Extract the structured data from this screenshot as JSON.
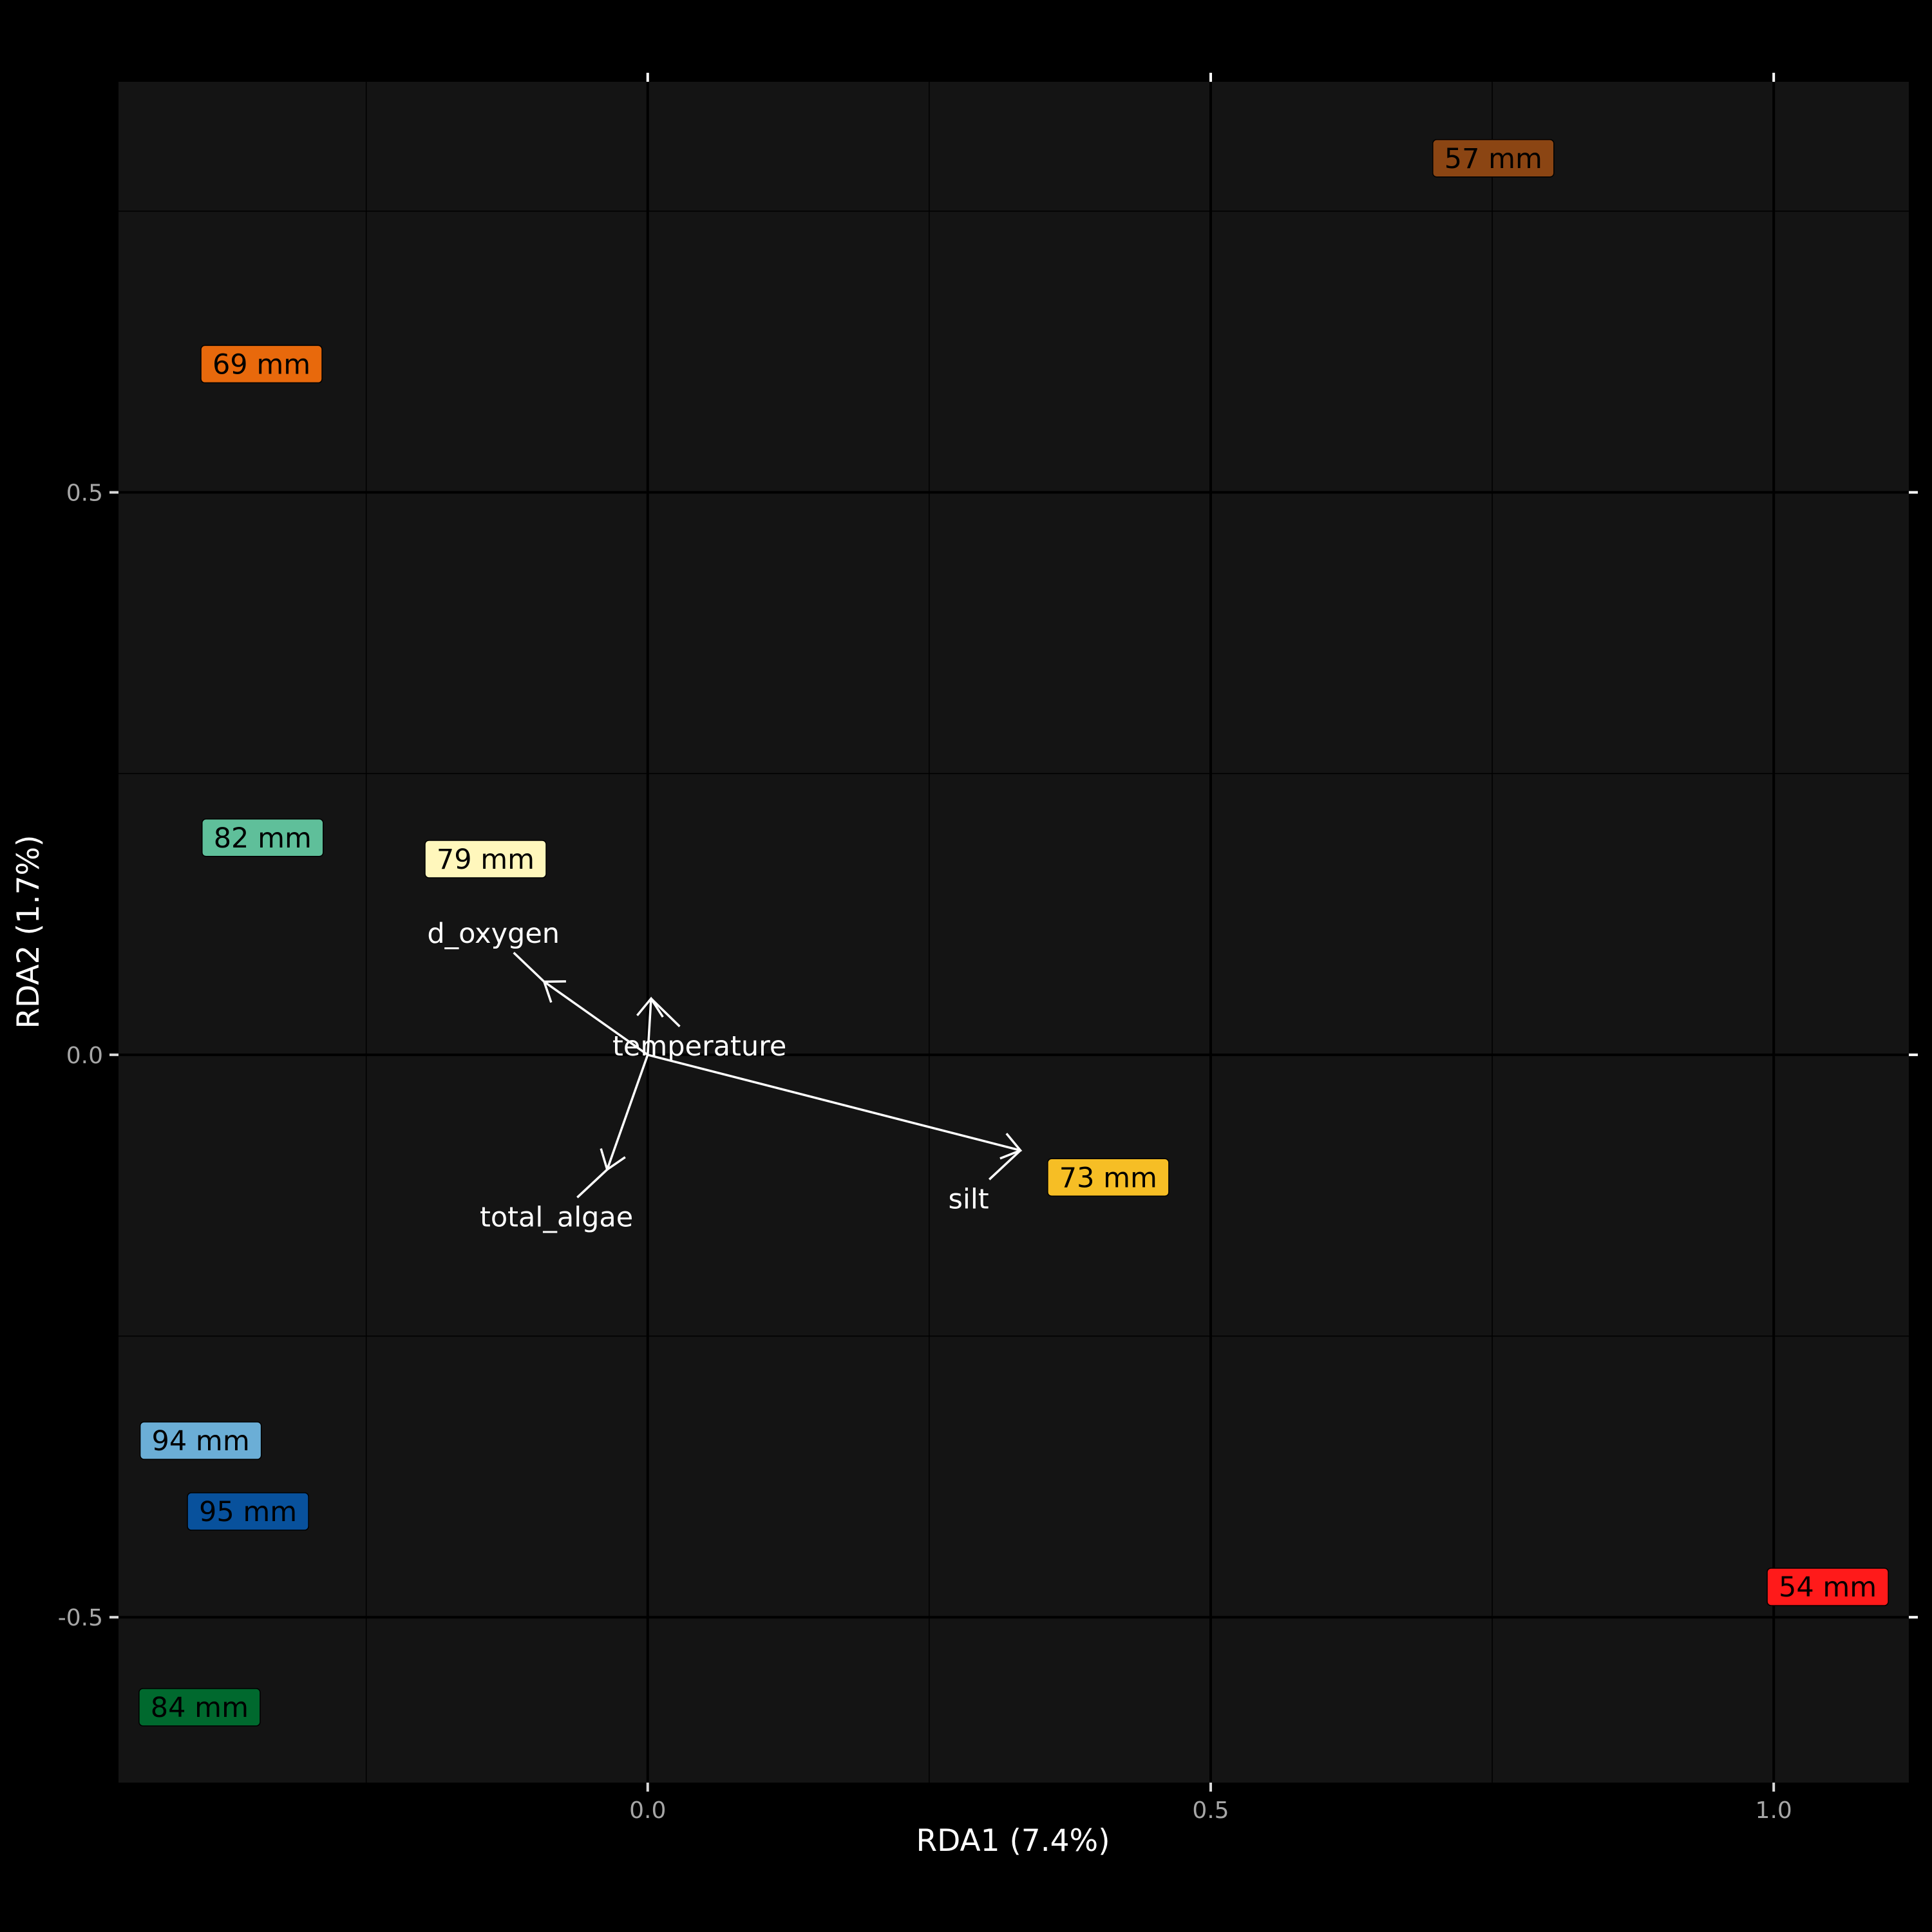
{
  "chart_data": {
    "type": "scatter",
    "title": "",
    "xlabel": "RDA1 (7.4%)",
    "ylabel": "RDA2 (1.7%)",
    "xlim": [
      -0.47,
      1.12
    ],
    "ylim": [
      -0.647,
      0.865
    ],
    "xticks": [
      0.0,
      0.5,
      1.0
    ],
    "yticks": [
      -0.5,
      0.0,
      0.5
    ],
    "xtick_labels": [
      "0.0",
      "0.5",
      "1.0"
    ],
    "ytick_labels": [
      "-0.5",
      "0.0",
      "0.5"
    ],
    "grid": true,
    "legend": "none",
    "sites": [
      {
        "label": "57 mm",
        "x": 0.751,
        "y": 0.797,
        "color": "#8B4513"
      },
      {
        "label": "69 mm",
        "x": -0.343,
        "y": 0.614,
        "color": "#E8690C"
      },
      {
        "label": "82 mm",
        "x": -0.342,
        "y": 0.193,
        "color": "#5FBF9A"
      },
      {
        "label": "79 mm",
        "x": -0.144,
        "y": 0.174,
        "color": "#FFF7BC"
      },
      {
        "label": "73 mm",
        "x": 0.409,
        "y": -0.109,
        "color": "#F6BE25"
      },
      {
        "label": "94 mm",
        "x": -0.397,
        "y": -0.343,
        "color": "#6BAED6"
      },
      {
        "label": "95 mm",
        "x": -0.355,
        "y": -0.406,
        "color": "#08519C"
      },
      {
        "label": "54 mm",
        "x": 1.048,
        "y": -0.473,
        "color": "#FF1A1A"
      },
      {
        "label": "84 mm",
        "x": -0.398,
        "y": -0.58,
        "color": "#00692E"
      }
    ],
    "vectors": [
      {
        "label": "d_oxygen",
        "x": -0.092,
        "y": 0.065,
        "label_x": -0.137,
        "label_y": 0.108
      },
      {
        "label": "temperature",
        "x": 0.003,
        "y": 0.05,
        "label_x": 0.046,
        "label_y": 0.008
      },
      {
        "label": "total_algae",
        "x": -0.036,
        "y": -0.102,
        "label_x": -0.081,
        "label_y": -0.144
      },
      {
        "label": "silt",
        "x": 0.331,
        "y": -0.085,
        "label_x": 0.285,
        "label_y": -0.128
      }
    ]
  }
}
